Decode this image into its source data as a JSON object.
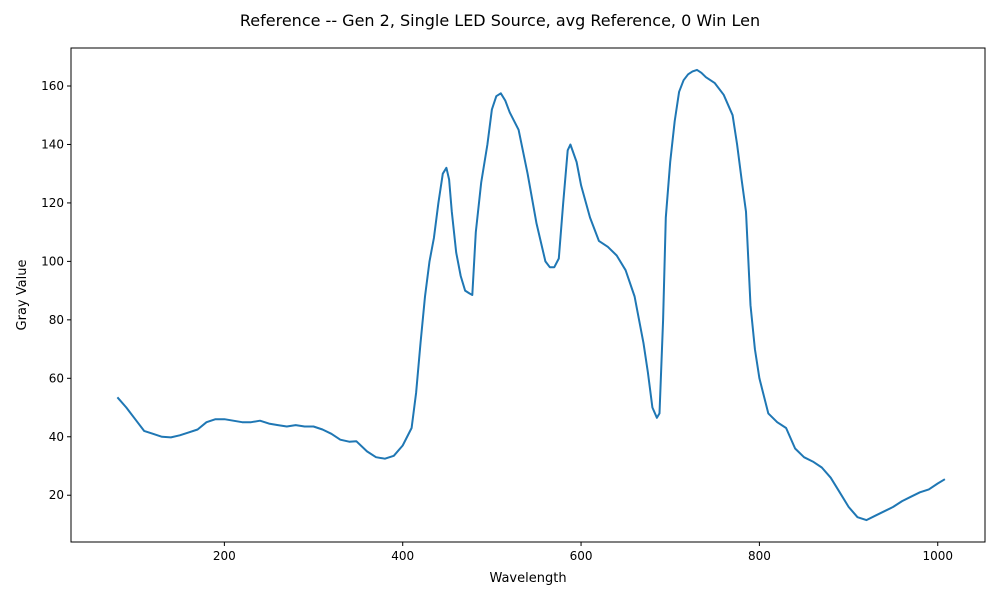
{
  "chart_data": {
    "type": "line",
    "title": "Reference -- Gen 2, Single LED Source, avg Reference, 0 Win Len",
    "xlabel": "Wavelength",
    "ylabel": "Gray Value",
    "xlim": [
      28,
      1053
    ],
    "ylim": [
      4,
      173
    ],
    "xticks": [
      200,
      400,
      600,
      800,
      1000
    ],
    "yticks": [
      20,
      40,
      60,
      80,
      100,
      120,
      140,
      160
    ],
    "grid": false,
    "legend": "none",
    "colors": {
      "series": "#1f77b4",
      "axes": "#000000",
      "background": "#ffffff"
    },
    "series": [
      {
        "points": [
          [
            80,
            53.5
          ],
          [
            90,
            50
          ],
          [
            100,
            46
          ],
          [
            110,
            42
          ],
          [
            120,
            41
          ],
          [
            130,
            40
          ],
          [
            140,
            39.8
          ],
          [
            150,
            40.5
          ],
          [
            160,
            41.5
          ],
          [
            170,
            42.5
          ],
          [
            180,
            45
          ],
          [
            190,
            46
          ],
          [
            200,
            46
          ],
          [
            210,
            45.5
          ],
          [
            220,
            45
          ],
          [
            230,
            45
          ],
          [
            240,
            45.5
          ],
          [
            250,
            44.5
          ],
          [
            260,
            44
          ],
          [
            270,
            43.5
          ],
          [
            280,
            44
          ],
          [
            290,
            43.5
          ],
          [
            300,
            43.5
          ],
          [
            310,
            42.5
          ],
          [
            320,
            41
          ],
          [
            330,
            39
          ],
          [
            340,
            38.3
          ],
          [
            348,
            38.5
          ],
          [
            360,
            35
          ],
          [
            370,
            33
          ],
          [
            380,
            32.5
          ],
          [
            390,
            33.5
          ],
          [
            400,
            37
          ],
          [
            410,
            43
          ],
          [
            415,
            55
          ],
          [
            420,
            72
          ],
          [
            425,
            88
          ],
          [
            430,
            100
          ],
          [
            435,
            108
          ],
          [
            440,
            120
          ],
          [
            445,
            130
          ],
          [
            449,
            132
          ],
          [
            452,
            128
          ],
          [
            455,
            117
          ],
          [
            460,
            103
          ],
          [
            465,
            95
          ],
          [
            470,
            90
          ],
          [
            475,
            89
          ],
          [
            478,
            88.5
          ],
          [
            482,
            110
          ],
          [
            488,
            127
          ],
          [
            495,
            140
          ],
          [
            500,
            152
          ],
          [
            505,
            156.5
          ],
          [
            510,
            157.5
          ],
          [
            515,
            155
          ],
          [
            520,
            151
          ],
          [
            530,
            145
          ],
          [
            540,
            130
          ],
          [
            550,
            113
          ],
          [
            560,
            100
          ],
          [
            565,
            98
          ],
          [
            570,
            98
          ],
          [
            575,
            101
          ],
          [
            580,
            120
          ],
          [
            585,
            138
          ],
          [
            588,
            140
          ],
          [
            595,
            134
          ],
          [
            600,
            126
          ],
          [
            610,
            115
          ],
          [
            620,
            107
          ],
          [
            630,
            105
          ],
          [
            640,
            102
          ],
          [
            650,
            97
          ],
          [
            660,
            88
          ],
          [
            670,
            72
          ],
          [
            675,
            62
          ],
          [
            680,
            50
          ],
          [
            685,
            46.5
          ],
          [
            688,
            48
          ],
          [
            692,
            80
          ],
          [
            695,
            115
          ],
          [
            700,
            134
          ],
          [
            705,
            148
          ],
          [
            710,
            158
          ],
          [
            715,
            162
          ],
          [
            720,
            164
          ],
          [
            725,
            165
          ],
          [
            730,
            165.5
          ],
          [
            735,
            164.5
          ],
          [
            740,
            163
          ],
          [
            750,
            161
          ],
          [
            760,
            157
          ],
          [
            770,
            150
          ],
          [
            775,
            140
          ],
          [
            780,
            128
          ],
          [
            785,
            117
          ],
          [
            790,
            85
          ],
          [
            795,
            70
          ],
          [
            800,
            60
          ],
          [
            810,
            48
          ],
          [
            820,
            45
          ],
          [
            830,
            43
          ],
          [
            840,
            36
          ],
          [
            850,
            33
          ],
          [
            860,
            31.5
          ],
          [
            870,
            29.5
          ],
          [
            880,
            26
          ],
          [
            890,
            21
          ],
          [
            900,
            16
          ],
          [
            910,
            12.5
          ],
          [
            920,
            11.5
          ],
          [
            930,
            13
          ],
          [
            940,
            14.5
          ],
          [
            950,
            16
          ],
          [
            960,
            18
          ],
          [
            970,
            19.5
          ],
          [
            980,
            21
          ],
          [
            990,
            22
          ],
          [
            1000,
            24
          ],
          [
            1008,
            25.5
          ]
        ]
      }
    ]
  }
}
